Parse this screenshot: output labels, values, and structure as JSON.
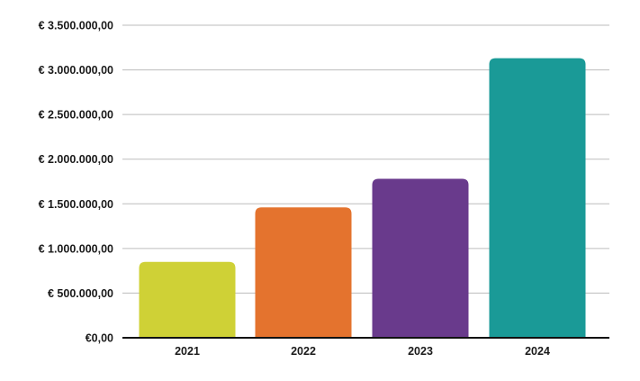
{
  "chart_data": {
    "type": "bar",
    "categories": [
      "2021",
      "2022",
      "2023",
      "2024"
    ],
    "values": [
      850000,
      1460000,
      1780000,
      3130000
    ],
    "colors": [
      "#cfd136",
      "#e4732e",
      "#693a8c",
      "#1a9a97"
    ],
    "ylim": [
      0,
      3500000
    ],
    "yticks": [
      0,
      500000,
      1000000,
      1500000,
      2000000,
      2500000,
      3000000,
      3500000
    ],
    "ytick_labels": [
      "€0,00",
      "€ 500.000,00",
      "€ 1.000.000,00",
      "€ 1.500.000,00",
      "€ 2.000.000,00",
      "€ 2.500.000,00",
      "€ 3.000.000,00",
      "€ 3.500.000,00"
    ],
    "title": "",
    "xlabel": "",
    "ylabel": "",
    "grid": true,
    "legend": "none"
  }
}
